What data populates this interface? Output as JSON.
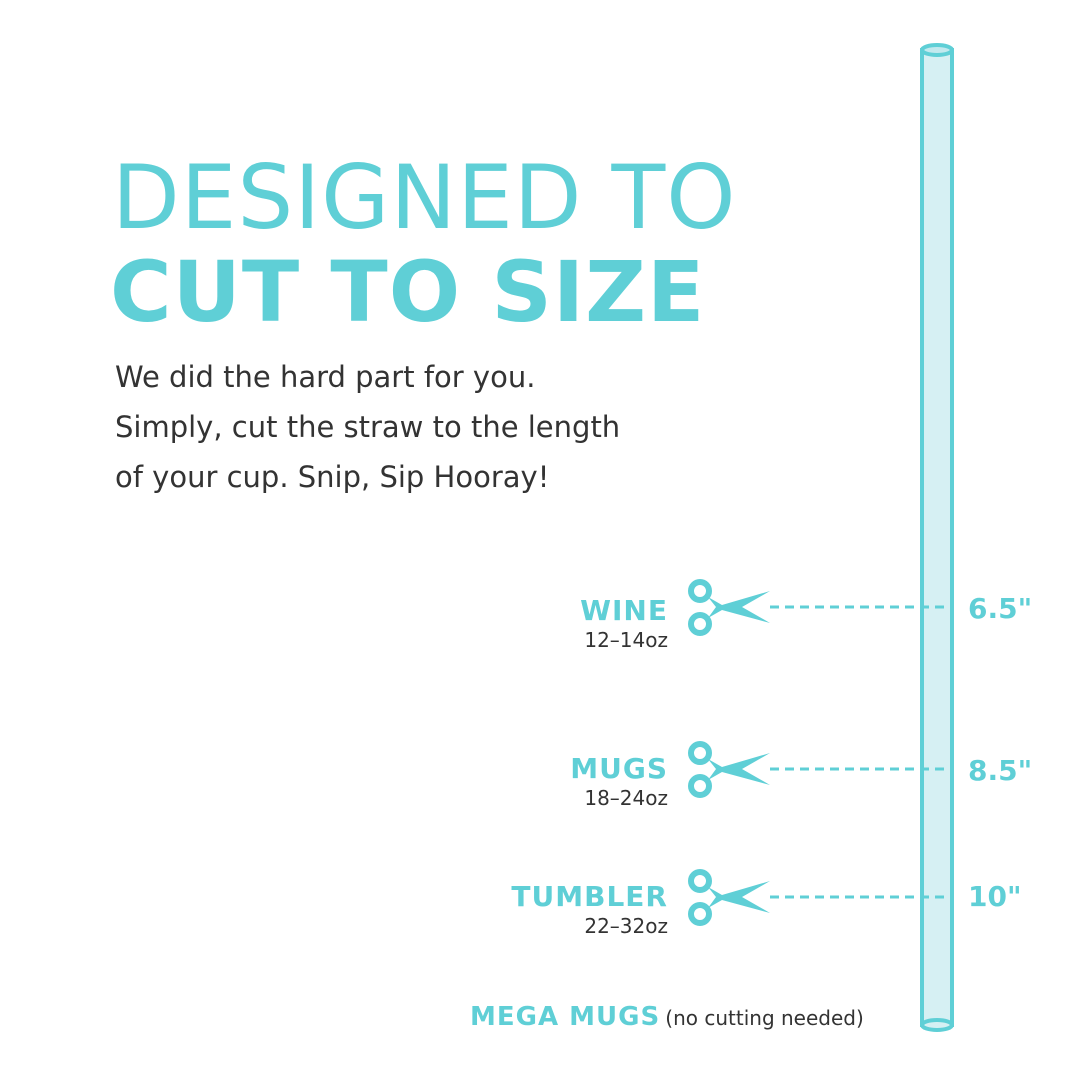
{
  "heading": {
    "line1": "DESIGNED TO",
    "line2": "CUT TO SIZE"
  },
  "body": [
    "We did the hard part for you.",
    "Simply, cut the straw to the length",
    "of your cup. Snip, Sip Hooray!"
  ],
  "cuts": [
    {
      "name": "WINE",
      "oz": "12–14oz",
      "length": "6.5\""
    },
    {
      "name": "MUGS",
      "oz": "18–24oz",
      "length": "8.5\""
    },
    {
      "name": "TUMBLER",
      "oz": "22–32oz",
      "length": "10\""
    }
  ],
  "mega": {
    "name": "MEGA MUGS",
    "note": "(no cutting needed)"
  },
  "colors": {
    "accent": "#5fcfd6",
    "straw_fill": "#d6f0f3",
    "text": "#333333"
  },
  "icons": [
    "scissors-icon",
    "straw-illustration"
  ]
}
